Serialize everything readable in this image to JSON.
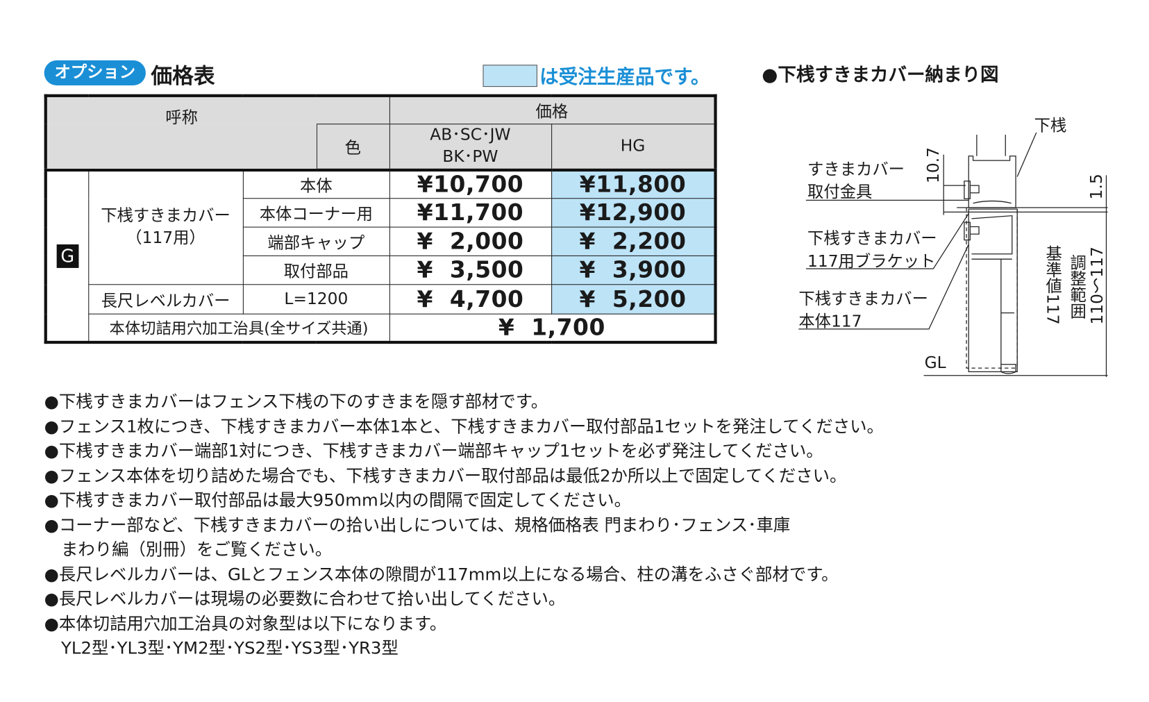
{
  "header": {
    "option_badge": "オプション",
    "title": "価格表",
    "legend_text": "は受注生産品です。",
    "legend_color": "#bde3f7",
    "accent_color": "#1a8fd6"
  },
  "table": {
    "h_name": "呼称",
    "h_color": "色",
    "h_price": "価格",
    "h_col1": "AB･SC･JW",
    "h_col1b": "BK･PW",
    "h_col2": "HG",
    "group": "G",
    "item1": "下桟すきまカバー",
    "item1b": "（117用）",
    "rows": [
      {
        "sub": "本体",
        "p1": "¥10,700",
        "p2": "¥11,800"
      },
      {
        "sub": "本体コーナー用",
        "p1": "¥11,700",
        "p2": "¥12,900"
      },
      {
        "sub": "端部キャップ",
        "p1": "¥  2,000",
        "p2": "¥  2,200"
      },
      {
        "sub": "取付部品",
        "p1": "¥  3,500",
        "p2": "¥  3,900"
      }
    ],
    "long": {
      "name": "長尺レベルカバー",
      "sub": "L=1200",
      "p1": "¥  4,700",
      "p2": "¥  5,200"
    },
    "jig": {
      "name": "本体切詰用穴加工治具(全サイズ共通)",
      "price": "¥  1,700"
    }
  },
  "notes": [
    "●下桟すきまカバーはフェンス下桟の下のすきまを隠す部材です。",
    "●フェンス1枚につき、下桟すきまカバー本体1本と、下桟すきまカバー取付部品1セットを発注してください。",
    "●下桟すきまカバー端部1対につき、下桟すきまカバー端部キャップ1セットを必ず発注してください。",
    "●フェンス本体を切り詰めた場合でも、下桟すきまカバー取付部品は最低2か所以上で固定してください。",
    "●下桟すきまカバー取付部品は最大950mm以内の間隔で固定してください。",
    "●コーナー部など、下桟すきまカバーの拾い出しについては、規格価格表 門まわり･フェンス･車庫",
    "まわり編（別冊）をご覧ください。",
    "●長尺レベルカバーは、GLとフェンス本体の隙間が117mm以上になる場合、柱の溝をふさぐ部材です。",
    "●長尺レベルカバーは現場の必要数に合わせて拾い出してください。",
    "●本体切詰用穴加工治具の対象型は以下になります。",
    "YL2型･YL3型･YM2型･YS2型･YS3型･YR3型"
  ],
  "diagram": {
    "title": "●下桟すきまカバー納まり図",
    "label_rail": "下桟",
    "label_fitting_1": "すきまカバー",
    "label_fitting_2": "取付金具",
    "label_bracket_1": "下桟すきまカバー",
    "label_bracket_2": "117用ブラケット",
    "label_body_1": "下桟すきまカバー",
    "label_body_2": "本体117",
    "label_gl": "GL",
    "dim_10_7": "10.7",
    "dim_1_5": "1.5",
    "dim_std": "基準値117",
    "dim_adj": "調整範囲",
    "dim_range": "110～117"
  }
}
